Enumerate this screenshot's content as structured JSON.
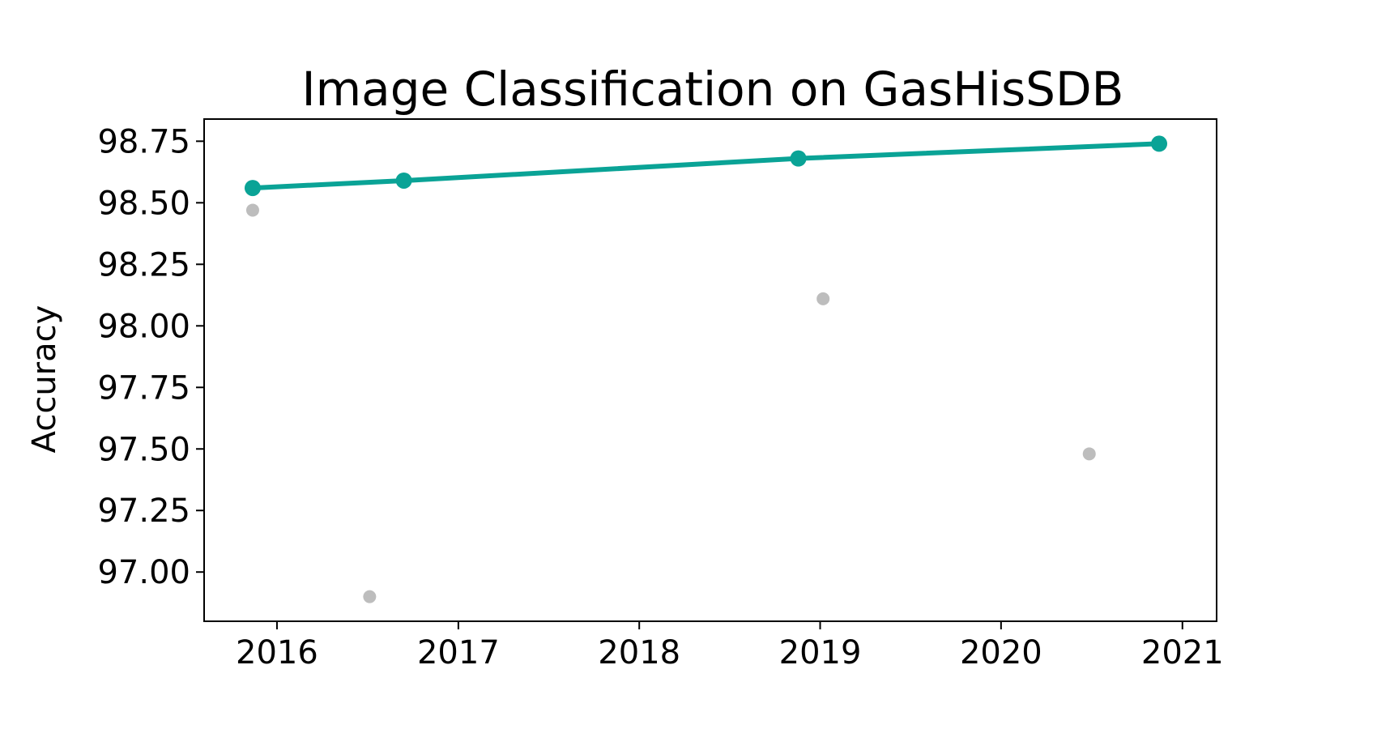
{
  "chart_data": {
    "type": "scatter",
    "title": "Image Classification on GasHisSDB",
    "xlabel": "",
    "ylabel": "Accuracy",
    "xlim": [
      "2015-08-07",
      "2021-03-11"
    ],
    "ylim": [
      96.8,
      98.84
    ],
    "x_ticks": [
      "2016",
      "2017",
      "2018",
      "2019",
      "2020",
      "2021"
    ],
    "y_ticks": [
      "97.00",
      "97.25",
      "97.50",
      "97.75",
      "98.00",
      "98.25",
      "98.50",
      "98.75"
    ],
    "grid": false,
    "series": [
      {
        "kind": "line",
        "color": "#0aa396",
        "points": [
          {
            "x": "2015-11-13",
            "y": 98.56
          },
          {
            "x": "2016-09-13",
            "y": 98.59
          },
          {
            "x": "2018-11-18",
            "y": 98.68
          },
          {
            "x": "2020-11-15",
            "y": 98.74
          }
        ]
      },
      {
        "kind": "scatter",
        "color": "#bdbdbd",
        "points": [
          {
            "x": "2015-11-13",
            "y": 98.47
          },
          {
            "x": "2016-07-06",
            "y": 96.9
          },
          {
            "x": "2019-01-07",
            "y": 98.11
          },
          {
            "x": "2020-06-27",
            "y": 97.48
          }
        ]
      }
    ]
  }
}
